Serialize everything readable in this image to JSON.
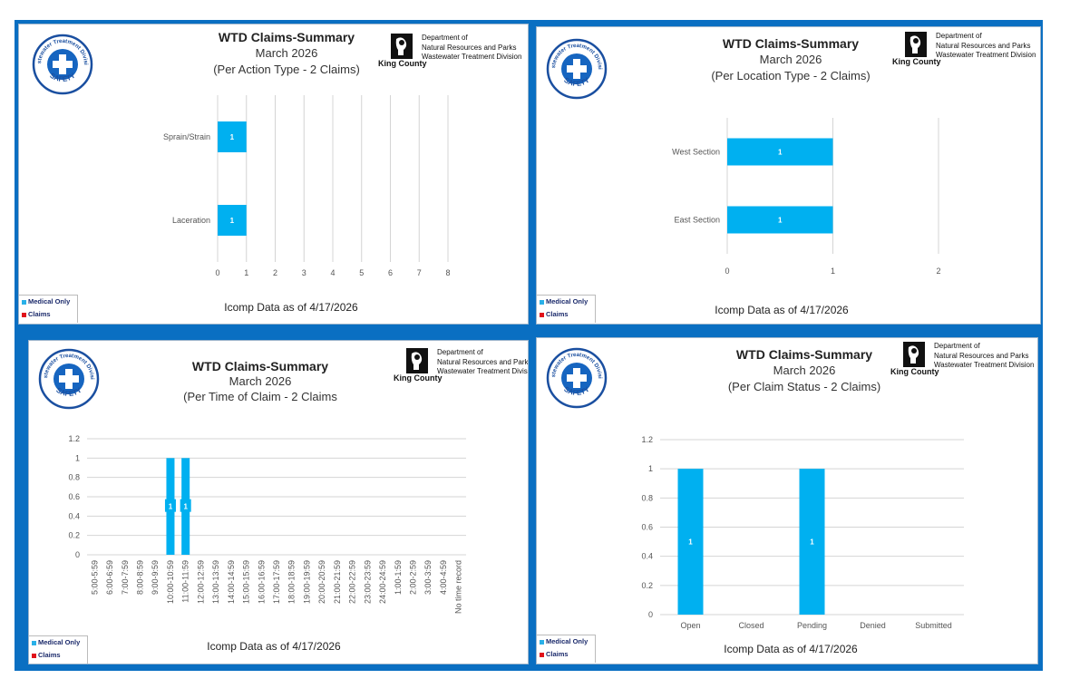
{
  "colors": {
    "frame": "#0a6fc2",
    "bar": "#00b0f0",
    "medical_only": "#29b0e8",
    "claims": "#e0121b",
    "gridline": "#d4d4d4"
  },
  "logo": {
    "arc_top": "Wastewater Treatment Division",
    "arc_bottom": "SAFETY",
    "icon": "safety-cross-icon"
  },
  "dept": {
    "line1": "Department of",
    "line2": "Natural Resources and Parks",
    "line3": "Wastewater Treatment Division",
    "name": "King County",
    "icon": "king-county-logo-icon"
  },
  "legend": {
    "medical_only": "Medical Only",
    "claims": "Claims"
  },
  "panels": [
    {
      "title": "WTD Claims-Summary",
      "subtitle1": "March 2026",
      "subtitle2": "(Per Action Type - 2 Claims)",
      "footer": "Icomp Data as of 4/17/2026"
    },
    {
      "title": "WTD Claims-Summary",
      "subtitle1": "March 2026",
      "subtitle2": "(Per Location Type - 2 Claims)",
      "footer": "Icomp Data as of  4/17/2026"
    },
    {
      "title": "WTD Claims-Summary",
      "subtitle1": "March 2026",
      "subtitle2": "(Per Time of Claim - 2 Claims",
      "footer": "Icomp Data as of 4/17/2026"
    },
    {
      "title": "WTD Claims-Summary",
      "subtitle1": "March 2026",
      "subtitle2": "(Per Claim Status - 2 Claims)",
      "footer": "Icomp Data as of 4/17/2026"
    }
  ],
  "chart_data": [
    {
      "type": "bar",
      "orientation": "horizontal",
      "categories": [
        "Sprain/Strain",
        "Laceration"
      ],
      "values": [
        1,
        1
      ],
      "data_labels": [
        "1",
        "1"
      ],
      "xticks": [
        0,
        1,
        2,
        3,
        4,
        5,
        6,
        7,
        8
      ],
      "xlim": [
        0,
        8
      ],
      "grid": true
    },
    {
      "type": "bar",
      "orientation": "horizontal",
      "categories": [
        "West Section",
        "East Section"
      ],
      "values": [
        1,
        1
      ],
      "data_labels": [
        "1",
        "1"
      ],
      "xticks": [
        0,
        1,
        2
      ],
      "xlim": [
        0,
        2
      ],
      "grid": true
    },
    {
      "type": "bar",
      "orientation": "vertical",
      "categories": [
        "5:00-5:59",
        "6:00-6:59",
        "7:00-7:59",
        "8:00-8:59",
        "9:00-9:59",
        "10:00-10:59",
        "11:00-11:59",
        "12:00-12:59",
        "13:00-13:59",
        "14:00-14:59",
        "15:00-15:59",
        "16:00-16:59",
        "17:00-17:59",
        "18:00-18:59",
        "19:00-19:59",
        "20:00-20:59",
        "21:00-21:59",
        "22:00-22:59",
        "23:00-23:59",
        "24:00-24:59",
        "1:00-1:59",
        "2:00-2:59",
        "3:00-3:59",
        "4:00-4:59",
        "No time record"
      ],
      "values": [
        0,
        0,
        0,
        0,
        0,
        1,
        1,
        0,
        0,
        0,
        0,
        0,
        0,
        0,
        0,
        0,
        0,
        0,
        0,
        0,
        0,
        0,
        0,
        0,
        0
      ],
      "data_labels": [
        "",
        "",
        "",
        "",
        "",
        "1",
        "1",
        "",
        "",
        "",
        "",
        "",
        "",
        "",
        "",
        "",
        "",
        "",
        "",
        "",
        "",
        "",
        "",
        "",
        ""
      ],
      "yticks": [
        "0",
        "0.2",
        "0.4",
        "0.6",
        "0.8",
        "1",
        "1.2"
      ],
      "ylim": [
        0,
        1.2
      ],
      "grid": true
    },
    {
      "type": "bar",
      "orientation": "vertical",
      "categories": [
        "Open",
        "Closed",
        "Pending",
        "Denied",
        "Submitted"
      ],
      "values": [
        1,
        0,
        1,
        0,
        0
      ],
      "data_labels": [
        "1",
        "",
        "1",
        "",
        ""
      ],
      "yticks": [
        "0",
        "0.2",
        "0.4",
        "0.6",
        "0.8",
        "1",
        "1.2"
      ],
      "ylim": [
        0,
        1.2
      ],
      "grid": true
    }
  ]
}
